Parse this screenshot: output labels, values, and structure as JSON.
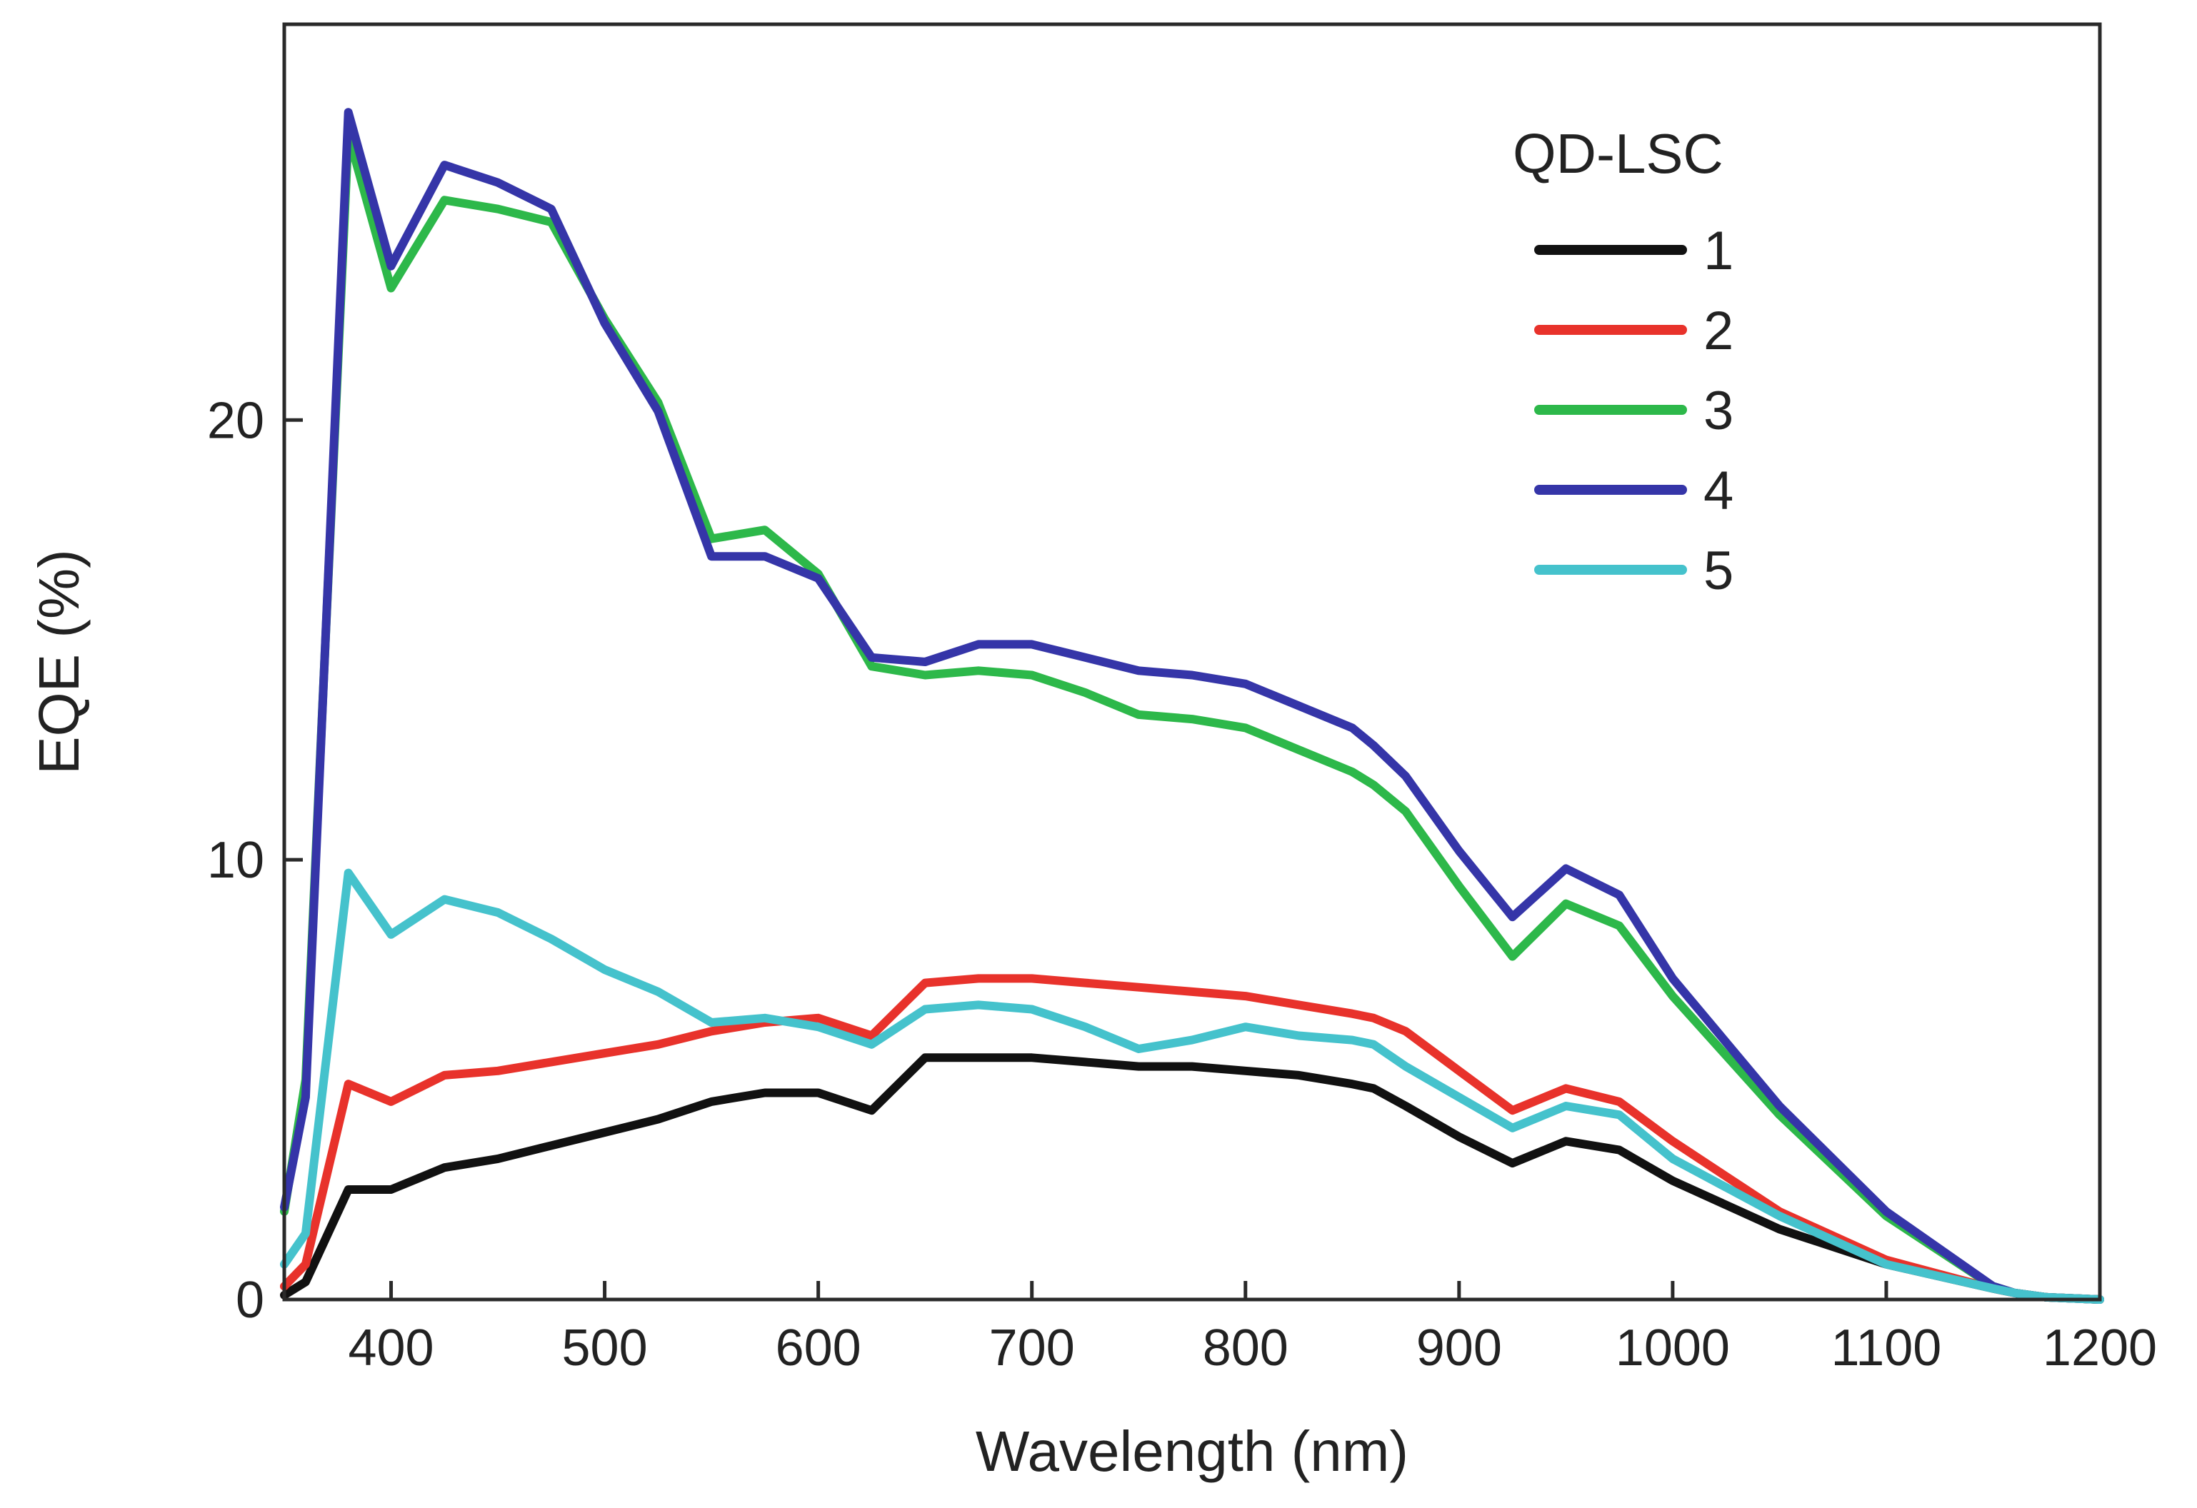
{
  "chart_data": {
    "type": "line",
    "title": "",
    "xlabel": "Wavelength (nm)",
    "ylabel": "EQE (%)",
    "xlim": [
      350,
      1200
    ],
    "ylim": [
      0,
      29
    ],
    "xticks": [
      400,
      500,
      600,
      700,
      800,
      900,
      1000,
      1100,
      1200
    ],
    "yticks": [
      0,
      10,
      20
    ],
    "grid": false,
    "legend": {
      "title": "QD-LSC",
      "position": "top-right"
    },
    "x": [
      350,
      360,
      380,
      400,
      425,
      450,
      475,
      500,
      525,
      550,
      575,
      600,
      625,
      650,
      675,
      700,
      725,
      750,
      775,
      800,
      825,
      850,
      860,
      875,
      900,
      925,
      950,
      975,
      1000,
      1050,
      1100,
      1150,
      1160,
      1175,
      1200
    ],
    "series": [
      {
        "name": "1",
        "color": "#111111",
        "values": [
          0.1,
          0.4,
          2.5,
          2.5,
          3.0,
          3.2,
          3.5,
          3.8,
          4.1,
          4.5,
          4.7,
          4.7,
          4.3,
          5.5,
          5.5,
          5.5,
          5.4,
          5.3,
          5.3,
          5.2,
          5.1,
          4.9,
          4.8,
          4.4,
          3.7,
          3.1,
          3.6,
          3.4,
          2.7,
          1.6,
          0.8,
          0.25,
          0.15,
          0.05,
          0.0
        ]
      },
      {
        "name": "2",
        "color": "#e8322b",
        "values": [
          0.3,
          0.8,
          4.9,
          4.5,
          5.1,
          5.2,
          5.4,
          5.6,
          5.8,
          6.1,
          6.3,
          6.4,
          6.0,
          7.2,
          7.3,
          7.3,
          7.2,
          7.1,
          7.0,
          6.9,
          6.7,
          6.5,
          6.4,
          6.1,
          5.2,
          4.3,
          4.8,
          4.5,
          3.6,
          2.0,
          0.9,
          0.25,
          0.15,
          0.05,
          0.0
        ]
      },
      {
        "name": "3",
        "color": "#2db84a",
        "values": [
          2.0,
          5.0,
          26.5,
          23.0,
          25.0,
          24.8,
          24.5,
          22.3,
          20.4,
          17.3,
          17.5,
          16.5,
          14.4,
          14.2,
          14.3,
          14.2,
          13.8,
          13.3,
          13.2,
          13.0,
          12.5,
          12.0,
          11.7,
          11.1,
          9.4,
          7.8,
          9.0,
          8.5,
          6.9,
          4.2,
          1.9,
          0.3,
          0.15,
          0.05,
          0.0
        ]
      },
      {
        "name": "4",
        "color": "#3535a8",
        "values": [
          2.1,
          4.6,
          27.0,
          23.5,
          25.8,
          25.4,
          24.8,
          22.2,
          20.2,
          16.9,
          16.9,
          16.4,
          14.6,
          14.5,
          14.9,
          14.9,
          14.6,
          14.3,
          14.2,
          14.0,
          13.5,
          13.0,
          12.6,
          11.9,
          10.2,
          8.7,
          9.8,
          9.2,
          7.3,
          4.4,
          2.0,
          0.3,
          0.15,
          0.05,
          0.0
        ]
      },
      {
        "name": "5",
        "color": "#45c2cc",
        "values": [
          0.8,
          1.5,
          9.7,
          8.3,
          9.1,
          8.8,
          8.2,
          7.5,
          7.0,
          6.3,
          6.4,
          6.2,
          5.8,
          6.6,
          6.7,
          6.6,
          6.2,
          5.7,
          5.9,
          6.2,
          6.0,
          5.9,
          5.8,
          5.3,
          4.6,
          3.9,
          4.4,
          4.2,
          3.2,
          1.9,
          0.8,
          0.25,
          0.15,
          0.05,
          0.0
        ]
      }
    ]
  }
}
